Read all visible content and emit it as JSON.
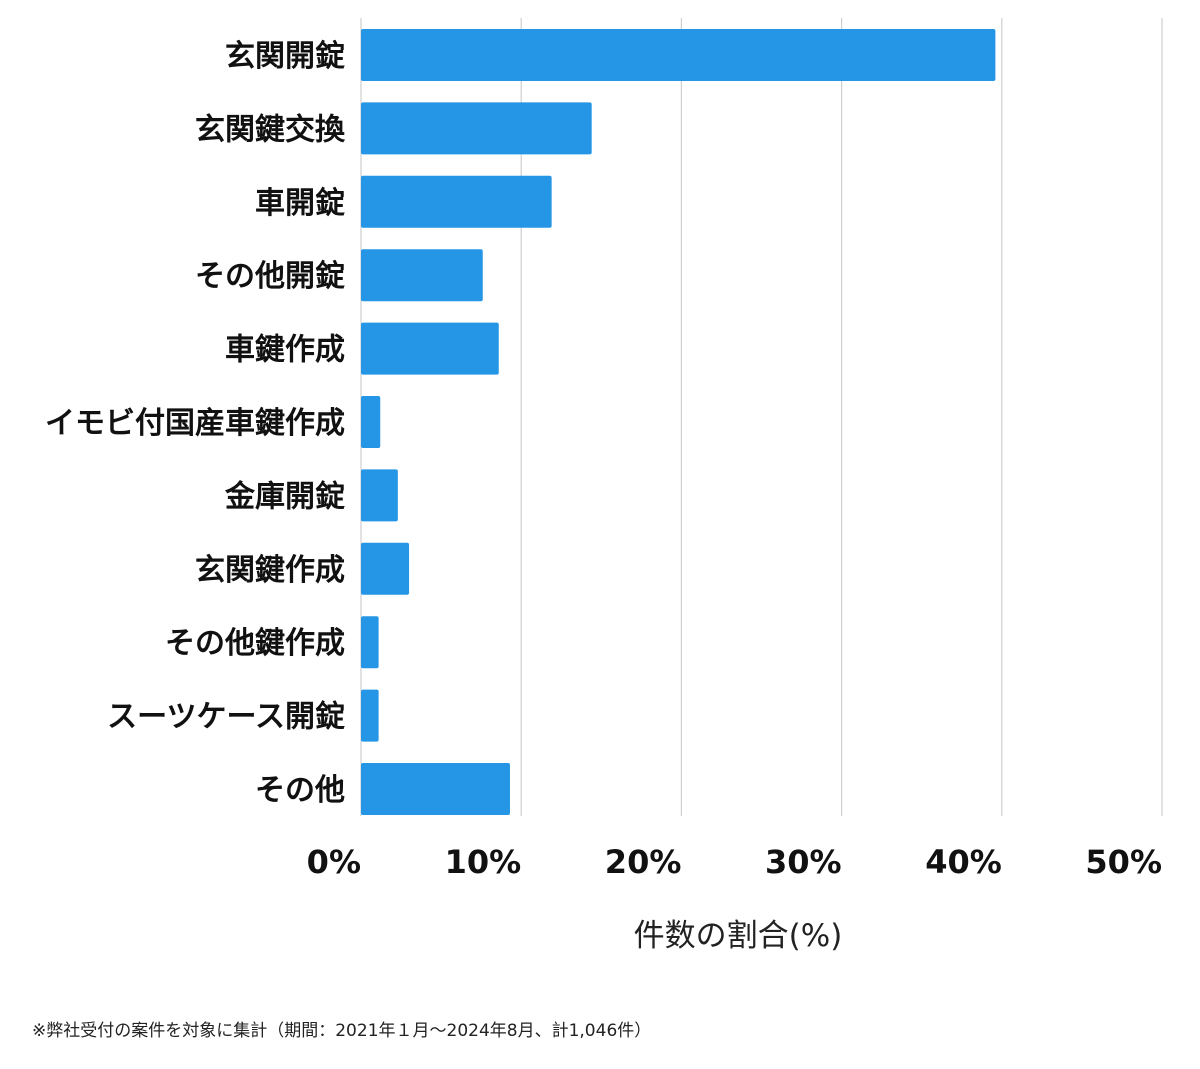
{
  "chart_data": {
    "type": "bar",
    "orientation": "horizontal",
    "categories": [
      "玄関開錠",
      "玄関鍵交換",
      "車開錠",
      "その他開錠",
      "車鍵作成",
      "イモビ付国産車鍵作成",
      "金庫開錠",
      "玄関鍵作成",
      "その他鍵作成",
      "スーツケース開錠",
      "その他"
    ],
    "values": [
      39.6,
      14.4,
      11.9,
      7.6,
      8.6,
      1.2,
      2.3,
      3.0,
      1.1,
      1.1,
      9.3
    ],
    "xlim": [
      0,
      50
    ],
    "x_ticks": [
      "0%",
      "10%",
      "20%",
      "30%",
      "40%",
      "50%"
    ],
    "xlabel": "件数の割合(%)",
    "ylabel": "",
    "grid": "vertical",
    "bar_color": "#2596e6"
  },
  "footnote": "※弊社受付の案件を対象に集計（期間：2021年１月〜2024年8月、計1,046件）"
}
